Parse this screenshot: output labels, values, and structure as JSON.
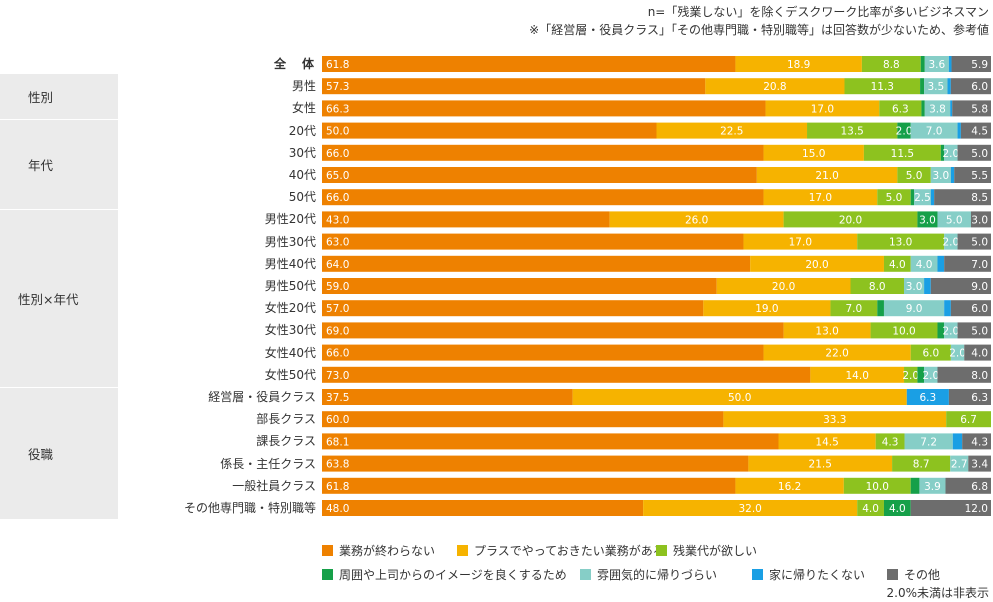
{
  "notes": {
    "line1": "n=「残業しない」を除くデスクワーク比率が多いビジネスマン",
    "line2": "※「経営層・役員クラス」「その他専門職・特別職等」は回答数が少ないため、参考値",
    "footer": "2.0%未満は非表示"
  },
  "groups": [
    "性別",
    "年代",
    "性別×年代",
    "役職"
  ],
  "chart_data": {
    "type": "bar",
    "orientation": "horizontal",
    "stacked": true,
    "xlim": [
      0,
      100
    ],
    "grid": false,
    "legend_placement": "bottom",
    "label_threshold": 2.0,
    "categories": [
      "全　体",
      "男性",
      "女性",
      "20代",
      "30代",
      "40代",
      "50代",
      "男性20代",
      "男性30代",
      "男性40代",
      "男性50代",
      "女性20代",
      "女性30代",
      "女性40代",
      "女性50代",
      "経営層・役員クラス",
      "部長クラス",
      "課長クラス",
      "係長・主任クラス",
      "一般社員クラス",
      "その他専門職・特別職等"
    ],
    "series": [
      {
        "name": "業務が終わらない",
        "color": "#ee8100",
        "values": [
          61.8,
          57.3,
          66.3,
          50.0,
          66.0,
          65.0,
          66.0,
          43.0,
          63.0,
          64.0,
          59.0,
          57.0,
          69.0,
          66.0,
          73.0,
          37.5,
          60.0,
          68.1,
          63.8,
          61.8,
          48.0
        ]
      },
      {
        "name": "プラスでやっておきたい業務がある",
        "color": "#f6b300",
        "values": [
          18.9,
          20.8,
          17.0,
          22.5,
          15.0,
          21.0,
          17.0,
          26.0,
          17.0,
          20.0,
          20.0,
          19.0,
          13.0,
          22.0,
          14.0,
          50.0,
          33.3,
          14.5,
          21.5,
          16.2,
          32.0
        ]
      },
      {
        "name": "残業代が欲しい",
        "color": "#8dc21f",
        "values": [
          8.8,
          11.3,
          6.3,
          13.5,
          11.5,
          5.0,
          5.0,
          20.0,
          13.0,
          4.0,
          8.0,
          7.0,
          10.0,
          6.0,
          2.0,
          0,
          6.7,
          4.3,
          8.7,
          10.0,
          4.0
        ]
      },
      {
        "name": "周囲や上司からのイメージを良くするため",
        "color": "#16a049",
        "values": [
          0.6,
          0.6,
          0.5,
          2.0,
          0.5,
          0,
          0.5,
          3.0,
          0,
          0,
          0,
          1.0,
          1.0,
          0,
          1.0,
          0,
          0,
          0,
          0,
          1.3,
          4.0
        ]
      },
      {
        "name": "雰囲気的に帰りづらい",
        "color": "#86cec7",
        "values": [
          3.6,
          3.5,
          3.8,
          7.0,
          2.0,
          3.0,
          2.5,
          5.0,
          2.0,
          4.0,
          3.0,
          9.0,
          2.0,
          2.0,
          2.0,
          0,
          0,
          7.2,
          2.7,
          3.9,
          0
        ]
      },
      {
        "name": "家に帰りたくない",
        "color": "#1a9fe4",
        "values": [
          0.4,
          0.5,
          0.3,
          0.5,
          0,
          0.5,
          0.5,
          0,
          0,
          1.0,
          1.0,
          1.0,
          0,
          0,
          0,
          6.3,
          0,
          1.4,
          0,
          0,
          0
        ]
      },
      {
        "name": "その他",
        "color": "#6d6d6d",
        "values": [
          5.9,
          6.0,
          5.8,
          4.5,
          5.0,
          5.5,
          8.5,
          3.0,
          5.0,
          7.0,
          9.0,
          6.0,
          5.0,
          4.0,
          8.0,
          6.3,
          0,
          4.3,
          3.4,
          6.8,
          12.0
        ]
      }
    ]
  }
}
